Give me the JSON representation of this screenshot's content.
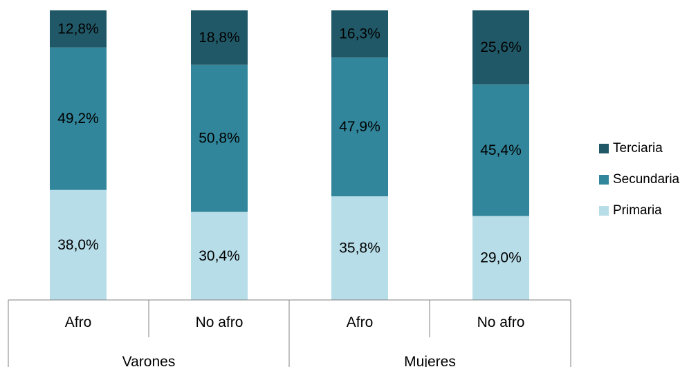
{
  "chart_data": {
    "type": "bar",
    "stacked": true,
    "title": "",
    "xlabel": "",
    "ylabel": "",
    "ylim": [
      0,
      100
    ],
    "grid": false,
    "legend_position": "right",
    "groups": [
      {
        "name": "Varones",
        "categories": [
          "Afro",
          "No afro"
        ]
      },
      {
        "name": "Mujeres",
        "categories": [
          "Afro",
          "No afro"
        ]
      }
    ],
    "categories": [
      "Afro",
      "No afro",
      "Afro",
      "No afro"
    ],
    "series": [
      {
        "name": "Primaria",
        "color": "#b7dde8",
        "values": [
          38.0,
          30.4,
          35.8,
          29.0
        ],
        "labels": [
          "38,0%",
          "30,4%",
          "35,8%",
          "29,0%"
        ]
      },
      {
        "name": "Secundaria",
        "color": "#31869b",
        "values": [
          49.2,
          50.8,
          47.9,
          45.4
        ],
        "labels": [
          "49,2%",
          "50,8%",
          "47,9%",
          "45,4%"
        ]
      },
      {
        "name": "Terciaria",
        "color": "#215867",
        "values": [
          12.8,
          18.8,
          16.3,
          25.6
        ],
        "labels": [
          "12,8%",
          "18,8%",
          "16,3%",
          "25,6%"
        ]
      }
    ],
    "legend_order": [
      "Terciaria",
      "Secundaria",
      "Primaria"
    ]
  }
}
